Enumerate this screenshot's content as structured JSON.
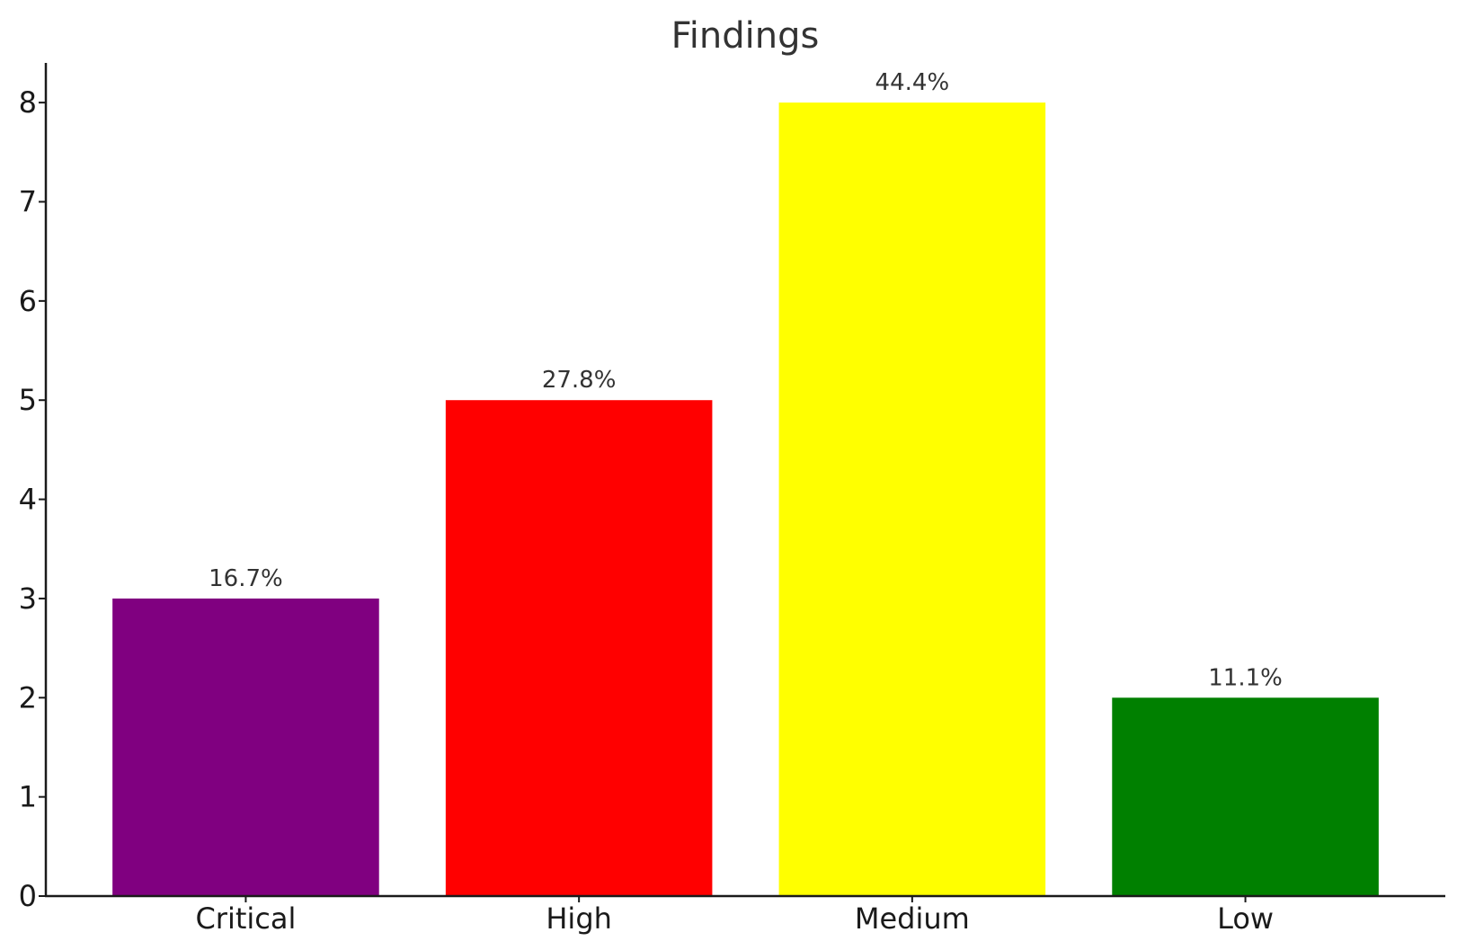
{
  "chart_data": {
    "type": "bar",
    "title": "Findings",
    "xlabel": "",
    "ylabel": "",
    "categories": [
      "Critical",
      "High",
      "Medium",
      "Low"
    ],
    "values": [
      3,
      5,
      8,
      2
    ],
    "data_labels": [
      "16.7%",
      "27.8%",
      "44.4%",
      "11.1%"
    ],
    "colors": [
      "#800080",
      "#ff0000",
      "#ffff00",
      "#008000"
    ],
    "ylim": [
      0,
      8.4
    ],
    "yticks": [
      0,
      1,
      2,
      3,
      4,
      5,
      6,
      7,
      8
    ],
    "grid": false,
    "legend": "none"
  }
}
